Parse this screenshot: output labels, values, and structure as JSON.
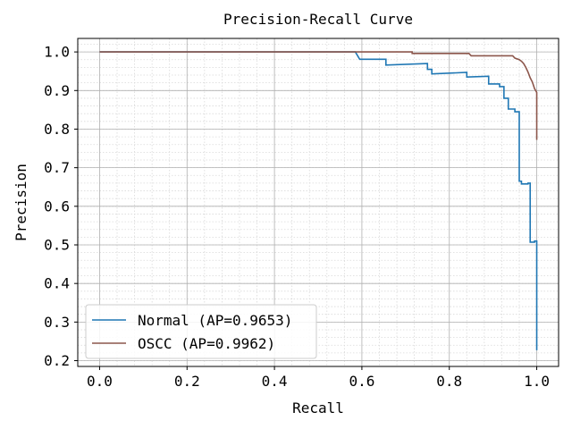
{
  "chart_data": {
    "type": "line",
    "title": "Precision-Recall Curve",
    "xlabel": "Recall",
    "ylabel": "Precision",
    "xlim": [
      -0.05,
      1.05
    ],
    "ylim": [
      0.185,
      1.035
    ],
    "x_ticks": [
      0.0,
      0.2,
      0.4,
      0.6,
      0.8,
      1.0
    ],
    "x_tick_labels": [
      "0.0",
      "0.2",
      "0.4",
      "0.6",
      "0.8",
      "1.0"
    ],
    "y_ticks": [
      0.2,
      0.3,
      0.4,
      0.5,
      0.6,
      0.7,
      0.8,
      0.9,
      1.0
    ],
    "y_tick_labels": [
      "0.2",
      "0.3",
      "0.4",
      "0.5",
      "0.6",
      "0.7",
      "0.8",
      "0.9",
      "1.0"
    ],
    "grid": "major and minor",
    "legend_position": "lower-left",
    "series": [
      {
        "name": "Normal (AP=0.9653)",
        "color": "#1f77b4",
        "x": [
          0.0,
          0.585,
          0.595,
          0.655,
          0.655,
          0.75,
          0.75,
          0.76,
          0.76,
          0.84,
          0.84,
          0.89,
          0.89,
          0.915,
          0.915,
          0.925,
          0.925,
          0.935,
          0.935,
          0.95,
          0.95,
          0.96,
          0.96,
          0.965,
          0.965,
          0.98,
          0.98,
          0.985,
          0.985,
          0.995,
          0.995,
          1.0,
          1.0
        ],
        "y": [
          1.0,
          1.0,
          0.981,
          0.981,
          0.966,
          0.97,
          0.955,
          0.955,
          0.943,
          0.947,
          0.935,
          0.937,
          0.917,
          0.917,
          0.91,
          0.91,
          0.88,
          0.88,
          0.852,
          0.852,
          0.845,
          0.845,
          0.665,
          0.665,
          0.658,
          0.658,
          0.66,
          0.66,
          0.507,
          0.507,
          0.51,
          0.51,
          0.227
        ]
      },
      {
        "name": "OSCC (AP=0.9962)",
        "color": "#8c564b",
        "x": [
          0.0,
          0.715,
          0.715,
          0.845,
          0.85,
          0.945,
          0.95,
          0.96,
          0.965,
          0.97,
          0.975,
          0.98,
          0.985,
          0.99,
          0.995,
          1.0,
          1.0
        ],
        "y": [
          1.0,
          1.0,
          0.996,
          0.996,
          0.99,
          0.99,
          0.984,
          0.98,
          0.976,
          0.97,
          0.96,
          0.948,
          0.933,
          0.922,
          0.905,
          0.895,
          0.772
        ]
      }
    ]
  }
}
